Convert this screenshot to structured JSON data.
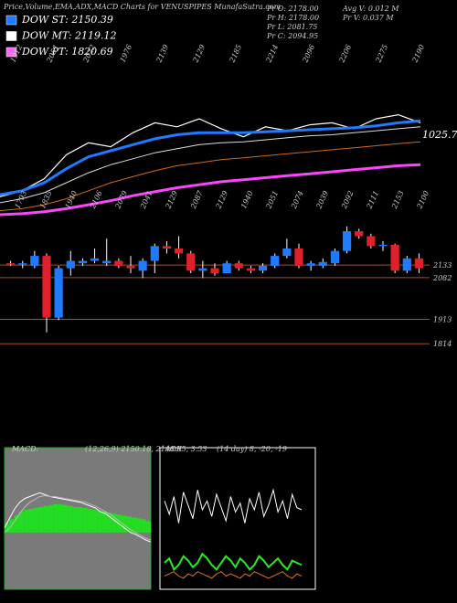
{
  "header": {
    "title": "Price,Volume,EMA,ADX,MACD Charts for VENUSPIPES MunafaSutra.com",
    "legend": [
      {
        "text": "DOW ST: 2150.39",
        "color": "#1e7bff"
      },
      {
        "text": "DOW MT: 2119.12",
        "color": "#ffffff"
      },
      {
        "text": "DOW PT: 1820.69",
        "color": "#ff66ff"
      }
    ],
    "info_left": [
      "Pr  O: 2178.00",
      "Pr  H: 2178.00",
      "Pr  L: 2081.75",
      "Pr  C: 2094.95"
    ],
    "info_right": [
      "Avg V: 0.012  M",
      "Pr  V: 0.037 M"
    ]
  },
  "chart_data": [
    {
      "type": "line",
      "ylim": [
        1600,
        2400
      ],
      "date_labels": [
        "1912",
        "2051",
        "2022",
        "1976",
        "2139",
        "2129",
        "2185",
        "2214",
        "2096",
        "2206",
        "2275",
        "2190"
      ],
      "annotation": "1025.70",
      "series": [
        {
          "color": "#ffffff",
          "width": 1.2,
          "values": [
            1690,
            1720,
            1780,
            1900,
            1960,
            1940,
            2010,
            2060,
            2040,
            2080,
            2030,
            1990,
            2040,
            2020,
            2050,
            2060,
            2030,
            2080,
            2100,
            2060
          ]
        },
        {
          "color": "#1e7bff",
          "width": 3,
          "values": [
            1700,
            1720,
            1760,
            1830,
            1890,
            1920,
            1950,
            1980,
            2000,
            2010,
            2010,
            2010,
            2015,
            2020,
            2025,
            2030,
            2035,
            2045,
            2060,
            2070
          ]
        },
        {
          "color": "#dddddd",
          "width": 1,
          "values": [
            1660,
            1680,
            1710,
            1760,
            1810,
            1850,
            1880,
            1910,
            1930,
            1950,
            1960,
            1965,
            1975,
            1985,
            1995,
            2000,
            2010,
            2020,
            2030,
            2040
          ]
        },
        {
          "color": "#d2691e",
          "width": 1,
          "values": [
            1620,
            1630,
            1650,
            1680,
            1720,
            1760,
            1790,
            1820,
            1845,
            1860,
            1875,
            1885,
            1895,
            1905,
            1915,
            1925,
            1935,
            1945,
            1955,
            1965
          ]
        },
        {
          "color": "#ff44ff",
          "width": 3,
          "values": [
            1600,
            1605,
            1615,
            1630,
            1650,
            1670,
            1695,
            1715,
            1735,
            1750,
            1765,
            1775,
            1785,
            1795,
            1805,
            1815,
            1825,
            1835,
            1845,
            1850
          ]
        }
      ]
    },
    {
      "type": "candlestick",
      "ylim": [
        1800,
        2300
      ],
      "yticks": [
        2133,
        2082,
        1913,
        1814
      ],
      "up_color": "#1e7bff",
      "down_color": "#e0202a",
      "date_labels": [
        "1793",
        "1835",
        "1940",
        "2106",
        "2079",
        "2041",
        "2129",
        "2087",
        "2129",
        "1940",
        "2051",
        "2074",
        "2039",
        "2092",
        "2111",
        "2153",
        "2100"
      ],
      "open": [
        2140,
        2135,
        2130,
        2170,
        1920,
        2120,
        2140,
        2150,
        2140,
        2150,
        2130,
        2110,
        2150,
        2210,
        2200,
        2180,
        2110,
        2120,
        2100,
        2140,
        2120,
        2110,
        2130,
        2170,
        2200,
        2130,
        2130,
        2140,
        2190,
        2270,
        2250,
        2210,
        2215,
        2110,
        2160
      ],
      "high": [
        2150,
        2150,
        2190,
        2180,
        2130,
        2190,
        2160,
        2200,
        2240,
        2160,
        2170,
        2160,
        2220,
        2230,
        2250,
        2190,
        2150,
        2140,
        2150,
        2150,
        2130,
        2140,
        2180,
        2240,
        2220,
        2150,
        2160,
        2200,
        2290,
        2280,
        2260,
        2230,
        2220,
        2170,
        2180
      ],
      "low": [
        2130,
        2120,
        2120,
        1860,
        1910,
        2090,
        2130,
        2140,
        2130,
        2120,
        2100,
        2080,
        2100,
        2180,
        2160,
        2100,
        2080,
        2090,
        2100,
        2110,
        2100,
        2100,
        2120,
        2160,
        2120,
        2110,
        2120,
        2130,
        2180,
        2240,
        2200,
        2190,
        2100,
        2100,
        2100
      ],
      "close": [
        2135,
        2140,
        2170,
        1920,
        2120,
        2150,
        2150,
        2160,
        2150,
        2130,
        2120,
        2150,
        2210,
        2200,
        2180,
        2110,
        2120,
        2100,
        2140,
        2120,
        2110,
        2130,
        2170,
        2200,
        2130,
        2140,
        2145,
        2190,
        2270,
        2250,
        2210,
        2215,
        2110,
        2160,
        2120
      ]
    },
    {
      "type": "macd",
      "title": "MACD:",
      "subtitle": "(12,26,9) 2150.18, 2146.65, 3.53",
      "ylim": [
        -60,
        80
      ],
      "series": [
        {
          "style": "bar",
          "color": "#22dd22",
          "values": [
            10,
            14,
            18,
            22,
            24,
            25,
            26,
            27,
            28,
            29,
            30,
            30,
            29,
            28,
            27,
            27,
            26,
            25,
            24,
            23,
            22,
            21,
            20,
            19,
            18,
            17,
            16,
            15,
            14,
            12
          ]
        },
        {
          "style": "line",
          "color": "#ffffff",
          "values": [
            5,
            15,
            25,
            32,
            36,
            38,
            40,
            42,
            40,
            38,
            37,
            36,
            35,
            34,
            33,
            32,
            30,
            28,
            26,
            22,
            20,
            16,
            12,
            8,
            4,
            0,
            -2,
            -5,
            -8,
            -10
          ]
        },
        {
          "style": "line",
          "color": "#bbbbbb",
          "values": [
            0,
            5,
            12,
            20,
            27,
            32,
            35,
            38,
            39,
            38,
            38,
            37,
            36,
            35,
            34,
            33,
            32,
            30,
            28,
            25,
            22,
            19,
            15,
            11,
            7,
            3,
            0,
            -3,
            -6,
            -8
          ]
        }
      ]
    },
    {
      "type": "adx",
      "title": "ADX",
      "subtitle": "(14 day) 8, -20, -19",
      "ylim": [
        0,
        60
      ],
      "series": [
        {
          "style": "line",
          "color": "#ffffff",
          "values": [
            40,
            34,
            42,
            30,
            44,
            38,
            32,
            45,
            36,
            40,
            33,
            43,
            37,
            31,
            42,
            35,
            39,
            30,
            41,
            36,
            44,
            33,
            38,
            45,
            35,
            40,
            32,
            43,
            37,
            36
          ]
        },
        {
          "style": "line",
          "color": "#22ee22",
          "values": [
            12,
            14,
            9,
            11,
            15,
            13,
            10,
            12,
            16,
            14,
            11,
            9,
            12,
            15,
            13,
            10,
            14,
            12,
            9,
            11,
            15,
            13,
            10,
            12,
            14,
            11,
            9,
            13,
            12,
            11
          ]
        },
        {
          "style": "line",
          "color": "#e07020",
          "values": [
            6,
            7,
            8,
            6,
            5,
            7,
            6,
            8,
            7,
            6,
            5,
            7,
            8,
            6,
            7,
            6,
            5,
            7,
            6,
            8,
            7,
            6,
            5,
            6,
            7,
            8,
            6,
            5,
            7,
            6
          ]
        }
      ]
    }
  ]
}
